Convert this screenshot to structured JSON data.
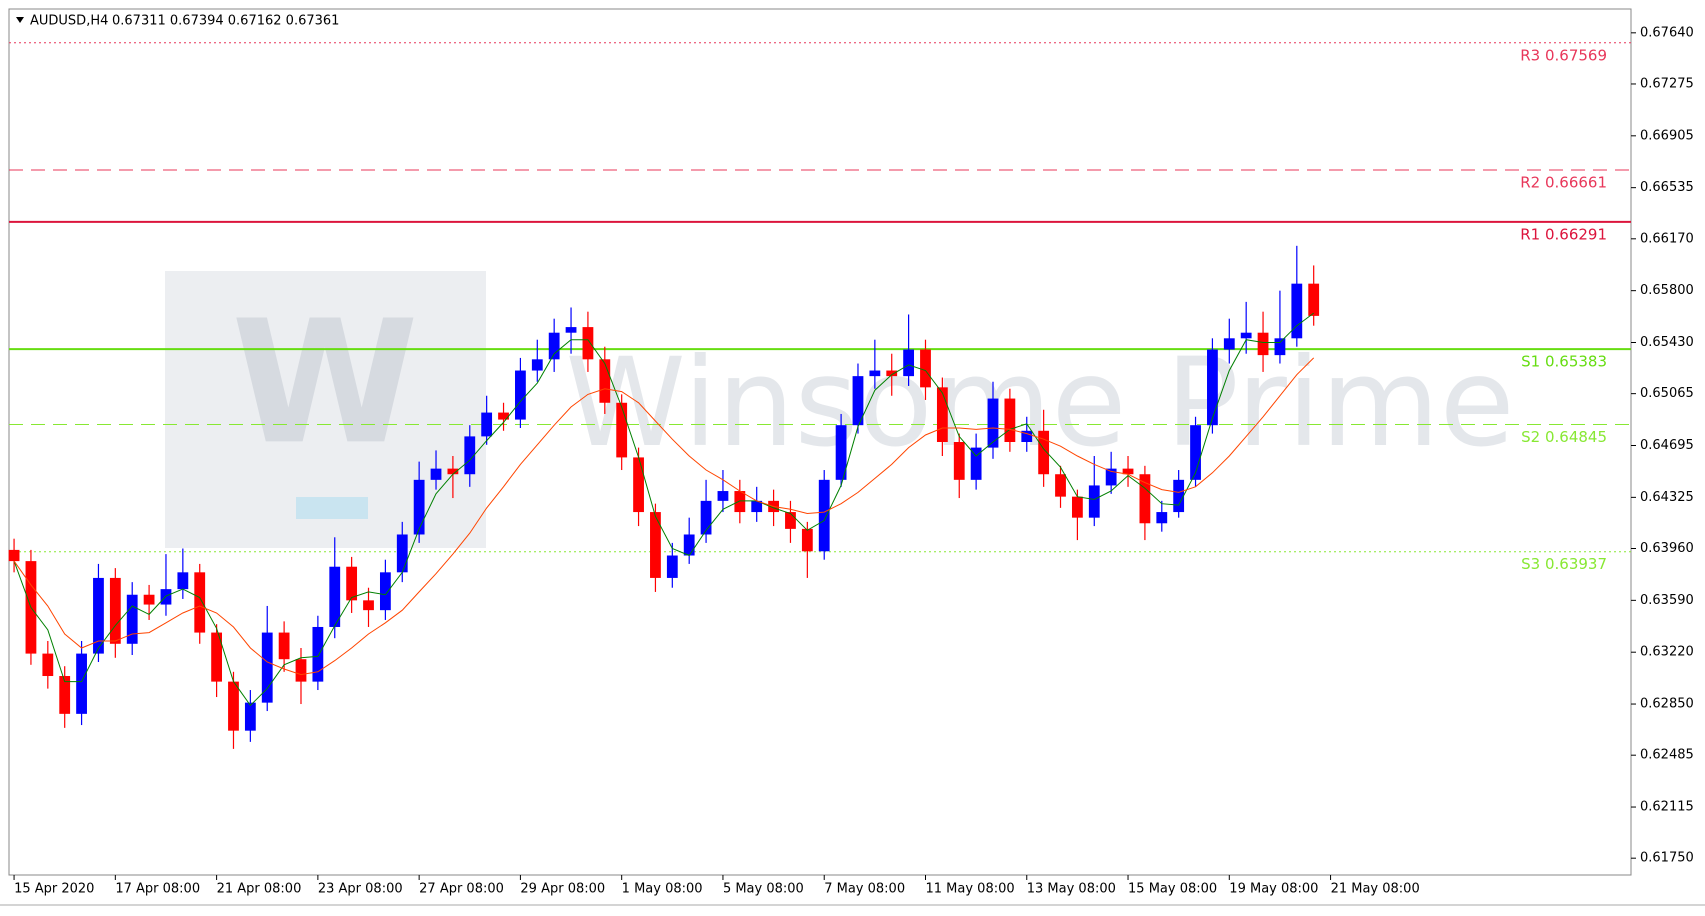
{
  "chart_data": {
    "type": "candlestick",
    "title": "AUDUSD,H4",
    "header_values": "0.67311 0.67394 0.67162 0.67361",
    "watermark": "Winsome Prime",
    "logo_letter": "W",
    "up_color": "#0000ff",
    "down_color": "#ff0000",
    "xlim": [
      -0.3,
      95.8
    ],
    "xticks": [
      {
        "value": 0,
        "label": "15 Apr 2020"
      },
      {
        "value": 6,
        "label": "17 Apr 08:00"
      },
      {
        "value": 12,
        "label": "21 Apr 08:00"
      },
      {
        "value": 18,
        "label": "23 Apr 08:00"
      },
      {
        "value": 24,
        "label": "27 Apr 08:00"
      },
      {
        "value": 30,
        "label": "29 Apr 08:00"
      },
      {
        "value": 36,
        "label": "1 May 08:00"
      },
      {
        "value": 42,
        "label": "5 May 08:00"
      },
      {
        "value": 48,
        "label": "7 May 08:00"
      },
      {
        "value": 54,
        "label": "11 May 08:00"
      },
      {
        "value": 60,
        "label": "13 May 08:00"
      },
      {
        "value": 66,
        "label": "15 May 08:00"
      },
      {
        "value": 72,
        "label": "19 May 08:00"
      },
      {
        "value": 78,
        "label": "21 May 08:00"
      }
    ],
    "ylim": [
      0.6163,
      0.6781
    ],
    "yticks": [
      {
        "value": 0.6764,
        "label": "0.67640"
      },
      {
        "value": 0.67275,
        "label": "0.67275"
      },
      {
        "value": 0.66905,
        "label": "0.66905"
      },
      {
        "value": 0.66535,
        "label": "0.66535"
      },
      {
        "value": 0.6617,
        "label": "0.66170"
      },
      {
        "value": 0.658,
        "label": "0.65800"
      },
      {
        "value": 0.6543,
        "label": "0.65430"
      },
      {
        "value": 0.65065,
        "label": "0.65065"
      },
      {
        "value": 0.64695,
        "label": "0.64695"
      },
      {
        "value": 0.64325,
        "label": "0.64325"
      },
      {
        "value": 0.6396,
        "label": "0.63960"
      },
      {
        "value": 0.6359,
        "label": "0.63590"
      },
      {
        "value": 0.6322,
        "label": "0.63220"
      },
      {
        "value": 0.6285,
        "label": "0.62850"
      },
      {
        "value": 0.62485,
        "label": "0.62485"
      },
      {
        "value": 0.62115,
        "label": "0.62115"
      },
      {
        "value": 0.6175,
        "label": "0.61750"
      }
    ],
    "candles": {
      "open": [
        0.6395,
        0.6387,
        0.6321,
        0.6305,
        0.6278,
        0.6321,
        0.6375,
        0.6328,
        0.6363,
        0.6356,
        0.6367,
        0.6379,
        0.6336,
        0.6301,
        0.6266,
        0.6286,
        0.6336,
        0.6317,
        0.6301,
        0.634,
        0.6383,
        0.6359,
        0.6352,
        0.6379,
        0.6406,
        0.6445,
        0.6453,
        0.6449,
        0.6476,
        0.6493,
        0.6488,
        0.6523,
        0.6531,
        0.655,
        0.6554,
        0.6531,
        0.65,
        0.6461,
        0.6422,
        0.6375,
        0.6391,
        0.6406,
        0.643,
        0.6437,
        0.6422,
        0.643,
        0.6422,
        0.641,
        0.6394,
        0.6445,
        0.6484,
        0.6519,
        0.6523,
        0.6519,
        0.6538,
        0.6511,
        0.6472,
        0.6445,
        0.6468,
        0.6503,
        0.6472,
        0.648,
        0.6449,
        0.6433,
        0.6418,
        0.6441,
        0.6453,
        0.6449,
        0.6414,
        0.6422,
        0.6445,
        0.6484,
        0.6538,
        0.6546,
        0.655,
        0.6534,
        0.6546,
        0.6585
      ],
      "high": [
        0.6403,
        0.6395,
        0.633,
        0.6312,
        0.633,
        0.6385,
        0.6382,
        0.6372,
        0.637,
        0.6392,
        0.6396,
        0.6385,
        0.6342,
        0.6308,
        0.6295,
        0.6355,
        0.6344,
        0.6325,
        0.6348,
        0.6404,
        0.639,
        0.6368,
        0.6388,
        0.6415,
        0.6458,
        0.6466,
        0.6462,
        0.6484,
        0.6505,
        0.65,
        0.6532,
        0.6545,
        0.656,
        0.6568,
        0.6565,
        0.654,
        0.6506,
        0.6468,
        0.6428,
        0.64,
        0.6418,
        0.6445,
        0.6452,
        0.6445,
        0.644,
        0.6438,
        0.643,
        0.6415,
        0.6452,
        0.6492,
        0.6528,
        0.6545,
        0.6535,
        0.6563,
        0.6545,
        0.6518,
        0.6478,
        0.6478,
        0.6515,
        0.651,
        0.649,
        0.6495,
        0.6455,
        0.6438,
        0.6462,
        0.6465,
        0.6462,
        0.6455,
        0.643,
        0.6452,
        0.649,
        0.6546,
        0.656,
        0.6572,
        0.6565,
        0.658,
        0.6612,
        0.6598
      ],
      "low": [
        0.6379,
        0.6313,
        0.6296,
        0.6268,
        0.627,
        0.6315,
        0.6318,
        0.632,
        0.6345,
        0.6348,
        0.636,
        0.6328,
        0.629,
        0.6253,
        0.6258,
        0.628,
        0.6308,
        0.6285,
        0.6295,
        0.6332,
        0.635,
        0.634,
        0.6345,
        0.6372,
        0.64,
        0.6438,
        0.6432,
        0.644,
        0.647,
        0.648,
        0.6482,
        0.6515,
        0.6522,
        0.6535,
        0.6522,
        0.6492,
        0.6452,
        0.6412,
        0.6365,
        0.6368,
        0.6385,
        0.64,
        0.6422,
        0.6414,
        0.6415,
        0.6412,
        0.64,
        0.6375,
        0.6388,
        0.644,
        0.6478,
        0.651,
        0.6505,
        0.6512,
        0.6502,
        0.6462,
        0.6432,
        0.6438,
        0.646,
        0.6465,
        0.6465,
        0.644,
        0.6425,
        0.6402,
        0.6412,
        0.6435,
        0.644,
        0.6402,
        0.6408,
        0.6418,
        0.644,
        0.6478,
        0.6528,
        0.6535,
        0.6522,
        0.6528,
        0.654,
        0.6555
      ],
      "close": [
        0.6387,
        0.6321,
        0.6305,
        0.6278,
        0.6321,
        0.6375,
        0.6328,
        0.6363,
        0.6356,
        0.6367,
        0.6379,
        0.6336,
        0.6301,
        0.6266,
        0.6286,
        0.6336,
        0.6317,
        0.6301,
        0.634,
        0.6383,
        0.6359,
        0.6352,
        0.6379,
        0.6406,
        0.6445,
        0.6453,
        0.6449,
        0.6476,
        0.6493,
        0.6488,
        0.6523,
        0.6531,
        0.655,
        0.6554,
        0.6531,
        0.65,
        0.6461,
        0.6422,
        0.6375,
        0.6391,
        0.6406,
        0.643,
        0.6437,
        0.6422,
        0.643,
        0.6422,
        0.641,
        0.6394,
        0.6445,
        0.6484,
        0.6519,
        0.6523,
        0.6519,
        0.6538,
        0.6511,
        0.6472,
        0.6445,
        0.6468,
        0.6503,
        0.6472,
        0.648,
        0.6449,
        0.6433,
        0.6418,
        0.6441,
        0.6453,
        0.6449,
        0.6414,
        0.6422,
        0.6445,
        0.6484,
        0.6538,
        0.6546,
        0.655,
        0.6534,
        0.6546,
        0.6585,
        0.6562
      ]
    },
    "moving_averages": [
      {
        "color": "#008000",
        "values": [
          0.6387,
          0.6354,
          0.6338,
          0.6301,
          0.6301,
          0.6325,
          0.6341,
          0.6355,
          0.6349,
          0.6362,
          0.6367,
          0.6361,
          0.6339,
          0.6301,
          0.6284,
          0.6296,
          0.6313,
          0.6318,
          0.6319,
          0.6341,
          0.6361,
          0.6365,
          0.6363,
          0.6379,
          0.641,
          0.6435,
          0.6449,
          0.6459,
          0.6473,
          0.6486,
          0.6501,
          0.6514,
          0.6535,
          0.6545,
          0.6545,
          0.6528,
          0.6497,
          0.6461,
          0.6419,
          0.6396,
          0.6391,
          0.6409,
          0.6424,
          0.643,
          0.643,
          0.6425,
          0.6421,
          0.6409,
          0.6416,
          0.6441,
          0.6483,
          0.6509,
          0.652,
          0.6527,
          0.6523,
          0.6507,
          0.6476,
          0.6462,
          0.6472,
          0.6481,
          0.6485,
          0.6467,
          0.6454,
          0.6433,
          0.6431,
          0.6437,
          0.6448,
          0.6439,
          0.6428,
          0.6427,
          0.645,
          0.6489,
          0.6523,
          0.6545,
          0.6543,
          0.6543,
          0.6555,
          0.6564
        ]
      },
      {
        "color": "#ff4500",
        "values": [
          0.6387,
          0.637,
          0.6355,
          0.6335,
          0.6325,
          0.633,
          0.633,
          0.6335,
          0.6336,
          0.6343,
          0.635,
          0.6355,
          0.635,
          0.634,
          0.6325,
          0.6315,
          0.631,
          0.6306,
          0.6308,
          0.6316,
          0.6325,
          0.6335,
          0.6343,
          0.6352,
          0.6365,
          0.6378,
          0.6392,
          0.6407,
          0.6425,
          0.644,
          0.6456,
          0.647,
          0.6484,
          0.6497,
          0.6506,
          0.651,
          0.6508,
          0.65,
          0.6487,
          0.6474,
          0.6462,
          0.6452,
          0.6445,
          0.6437,
          0.643,
          0.6426,
          0.6424,
          0.6421,
          0.6422,
          0.6428,
          0.6436,
          0.6446,
          0.6456,
          0.6468,
          0.6477,
          0.6482,
          0.6482,
          0.6481,
          0.6482,
          0.6481,
          0.6478,
          0.6474,
          0.6469,
          0.6462,
          0.6456,
          0.6451,
          0.6449,
          0.6443,
          0.6438,
          0.6436,
          0.644,
          0.645,
          0.6462,
          0.6476,
          0.649,
          0.6505,
          0.652,
          0.6532
        ]
      }
    ],
    "levels": [
      {
        "label": "R3 0.67569",
        "value": 0.67569,
        "color": "#e8375a",
        "style": "dotted"
      },
      {
        "label": "R2 0.66661",
        "value": 0.66661,
        "color": "#e8375a",
        "style": "dashed"
      },
      {
        "label": "R1 0.66291",
        "value": 0.66291,
        "color": "#dc143c",
        "style": "solid"
      },
      {
        "label": "S1 0.65383",
        "value": 0.65383,
        "color": "#66dd11",
        "style": "solid"
      },
      {
        "label": "S2 0.64845",
        "value": 0.64845,
        "color": "#88e833",
        "style": "dashed"
      },
      {
        "label": "S3 0.63937",
        "value": 0.63937,
        "color": "#88e833",
        "style": "dotted"
      }
    ]
  }
}
